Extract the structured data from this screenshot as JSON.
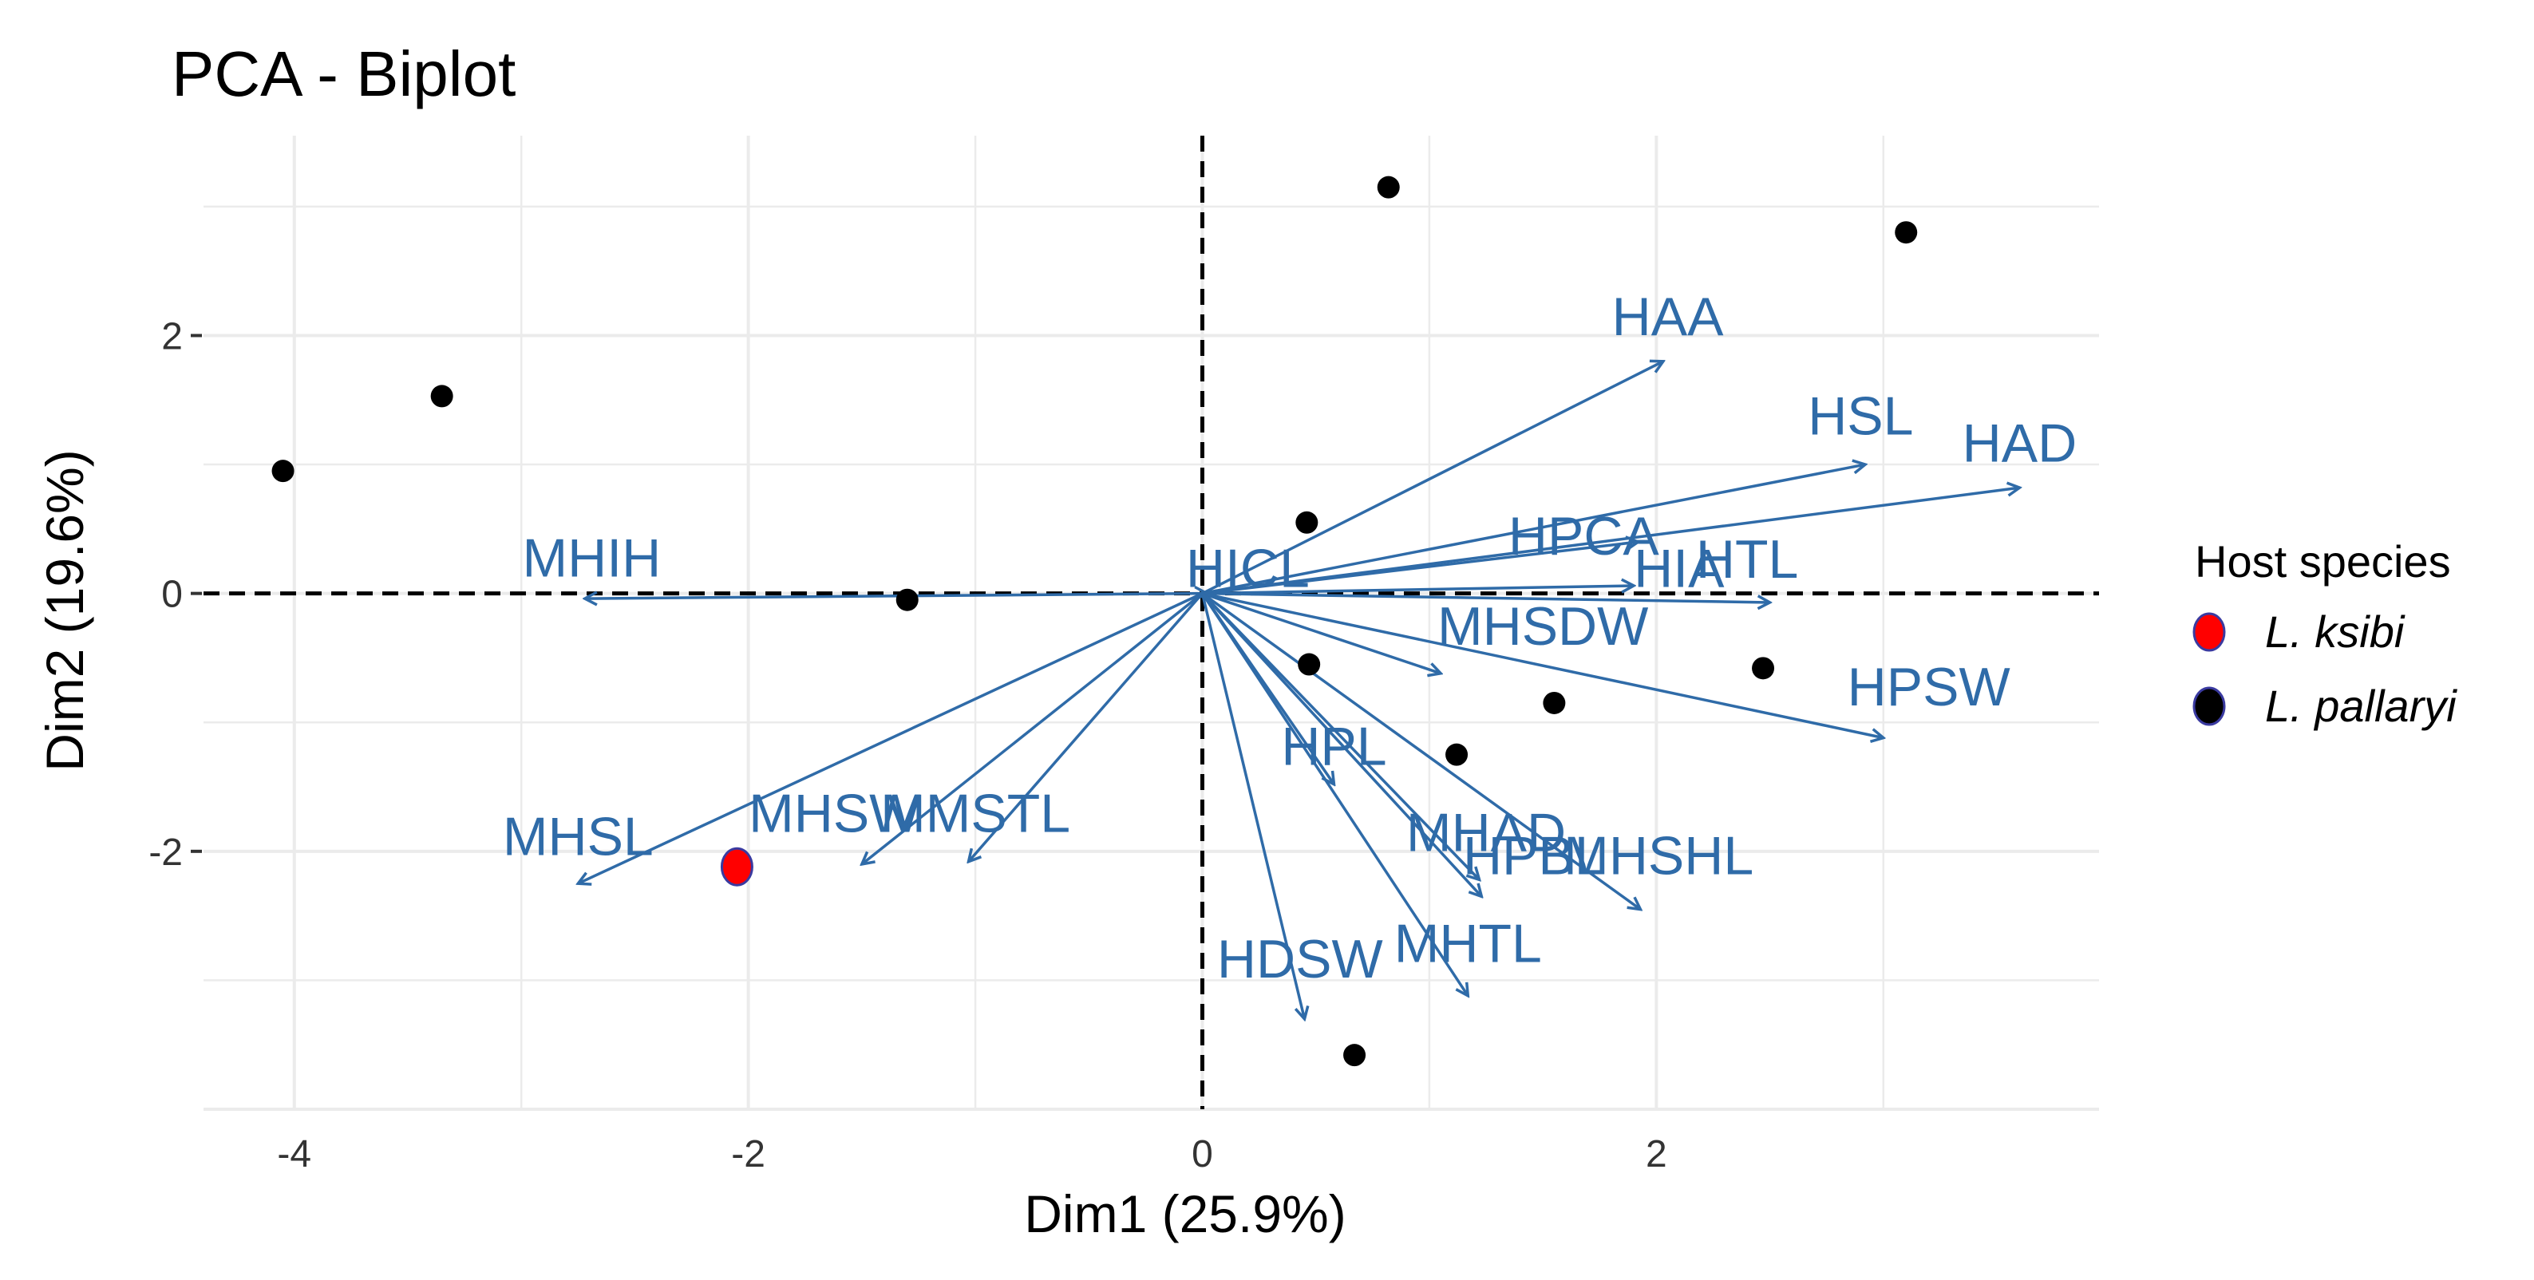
{
  "chart_data": {
    "type": "scatter",
    "subtype": "pca-biplot",
    "title": "PCA - Biplot",
    "xlabel": "Dim1 (25.9%)",
    "ylabel": "Dim2 (19.6%)",
    "xlim": [
      -4.4,
      3.95
    ],
    "ylim": [
      -4.0,
      3.55
    ],
    "xticks": [
      -4,
      -2,
      0,
      2
    ],
    "yticks": [
      -2,
      0,
      2
    ],
    "grid": true,
    "reference_lines": {
      "x": 0,
      "y": 0,
      "style": "dashed"
    },
    "legend": {
      "title": "Host species",
      "position": "right",
      "entries": [
        {
          "label": "L. ksibi",
          "color": "#ff0000"
        },
        {
          "label": "L. pallaryi",
          "color": "#000000"
        }
      ]
    },
    "points": [
      {
        "x": -4.05,
        "y": 0.95,
        "group": "L. pallaryi"
      },
      {
        "x": -3.35,
        "y": 1.53,
        "group": "L. pallaryi"
      },
      {
        "x": -1.3,
        "y": -0.05,
        "group": "L. pallaryi"
      },
      {
        "x": 0.82,
        "y": 3.15,
        "group": "L. pallaryi"
      },
      {
        "x": 3.1,
        "y": 2.8,
        "group": "L. pallaryi"
      },
      {
        "x": 0.46,
        "y": 0.55,
        "group": "L. pallaryi"
      },
      {
        "x": 0.47,
        "y": -0.55,
        "group": "L. pallaryi"
      },
      {
        "x": 1.55,
        "y": -0.85,
        "group": "L. pallaryi"
      },
      {
        "x": 1.12,
        "y": -1.25,
        "group": "L. pallaryi"
      },
      {
        "x": 2.47,
        "y": -0.58,
        "group": "L. pallaryi"
      },
      {
        "x": 0.67,
        "y": -3.58,
        "group": "L. pallaryi"
      },
      {
        "x": -2.05,
        "y": -2.12,
        "group": "L. ksibi"
      }
    ],
    "variables": [
      {
        "name": "HAA",
        "x": 2.03,
        "y": 1.8,
        "label_x": 2.05,
        "label_y": 2.15
      },
      {
        "name": "HSL",
        "x": 2.92,
        "y": 1.0,
        "label_x": 2.9,
        "label_y": 1.38
      },
      {
        "name": "HAD",
        "x": 3.6,
        "y": 0.82,
        "label_x": 3.6,
        "label_y": 1.17
      },
      {
        "name": "HPCA",
        "x": 1.92,
        "y": 0.4,
        "label_x": 1.68,
        "label_y": 0.45
      },
      {
        "name": "HIA",
        "x": 1.9,
        "y": 0.06,
        "label_x": 2.1,
        "label_y": 0.2
      },
      {
        "name": "HTL",
        "x": 2.5,
        "y": -0.07,
        "label_x": 2.4,
        "label_y": 0.27
      },
      {
        "name": "HICL",
        "x": 0.02,
        "y": 0.0,
        "label_x": 0.2,
        "label_y": 0.2
      },
      {
        "name": "MHIH",
        "x": -2.72,
        "y": -0.04,
        "label_x": -2.69,
        "label_y": 0.28
      },
      {
        "name": "MHSDW",
        "x": 1.05,
        "y": -0.62,
        "label_x": 1.5,
        "label_y": -0.25
      },
      {
        "name": "HPSW",
        "x": 3.0,
        "y": -1.12,
        "label_x": 3.2,
        "label_y": -0.72
      },
      {
        "name": "HPL",
        "x": 0.58,
        "y": -1.48,
        "label_x": 0.58,
        "label_y": -1.18
      },
      {
        "name": "MHSL",
        "x": -2.75,
        "y": -2.25,
        "label_x": -2.75,
        "label_y": -1.88
      },
      {
        "name": "MHSW",
        "x": -1.5,
        "y": -2.1,
        "label_x": -1.62,
        "label_y": -1.7
      },
      {
        "name": "MMSTL",
        "x": -1.03,
        "y": -2.08,
        "label_x": -1.0,
        "label_y": -1.7
      },
      {
        "name": "MHAD",
        "x": 1.22,
        "y": -2.22,
        "label_x": 1.25,
        "label_y": -1.85
      },
      {
        "name": "HPBL",
        "x": 1.23,
        "y": -2.35,
        "label_x": 1.46,
        "label_y": -2.03
      },
      {
        "name": "MHSHL",
        "x": 1.93,
        "y": -2.45,
        "label_x": 2.01,
        "label_y": -2.03
      },
      {
        "name": "HDSW",
        "x": 0.45,
        "y": -3.3,
        "label_x": 0.43,
        "label_y": -2.83
      },
      {
        "name": "MHTL",
        "x": 1.17,
        "y": -3.12,
        "label_x": 1.17,
        "label_y": -2.71
      }
    ],
    "arrow_color": "#2f6ba8"
  }
}
